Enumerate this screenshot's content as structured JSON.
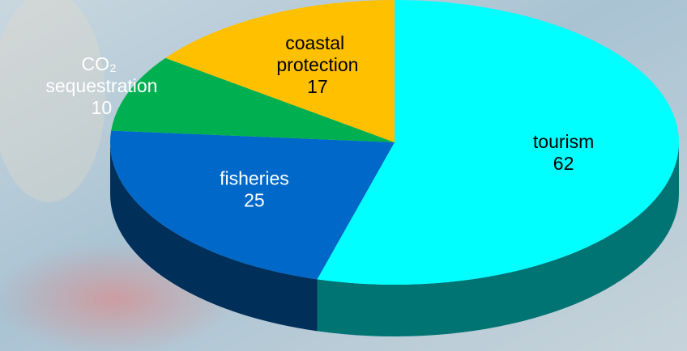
{
  "chart_data": {
    "type": "pie3d",
    "categories": [
      "tourism",
      "fisheries",
      "CO₂ sequestration",
      "coastal protection"
    ],
    "values": [
      62,
      25,
      10,
      17
    ],
    "colors": [
      "#00ffff",
      "#0068c8",
      "#00b050",
      "#ffc000"
    ]
  }
}
